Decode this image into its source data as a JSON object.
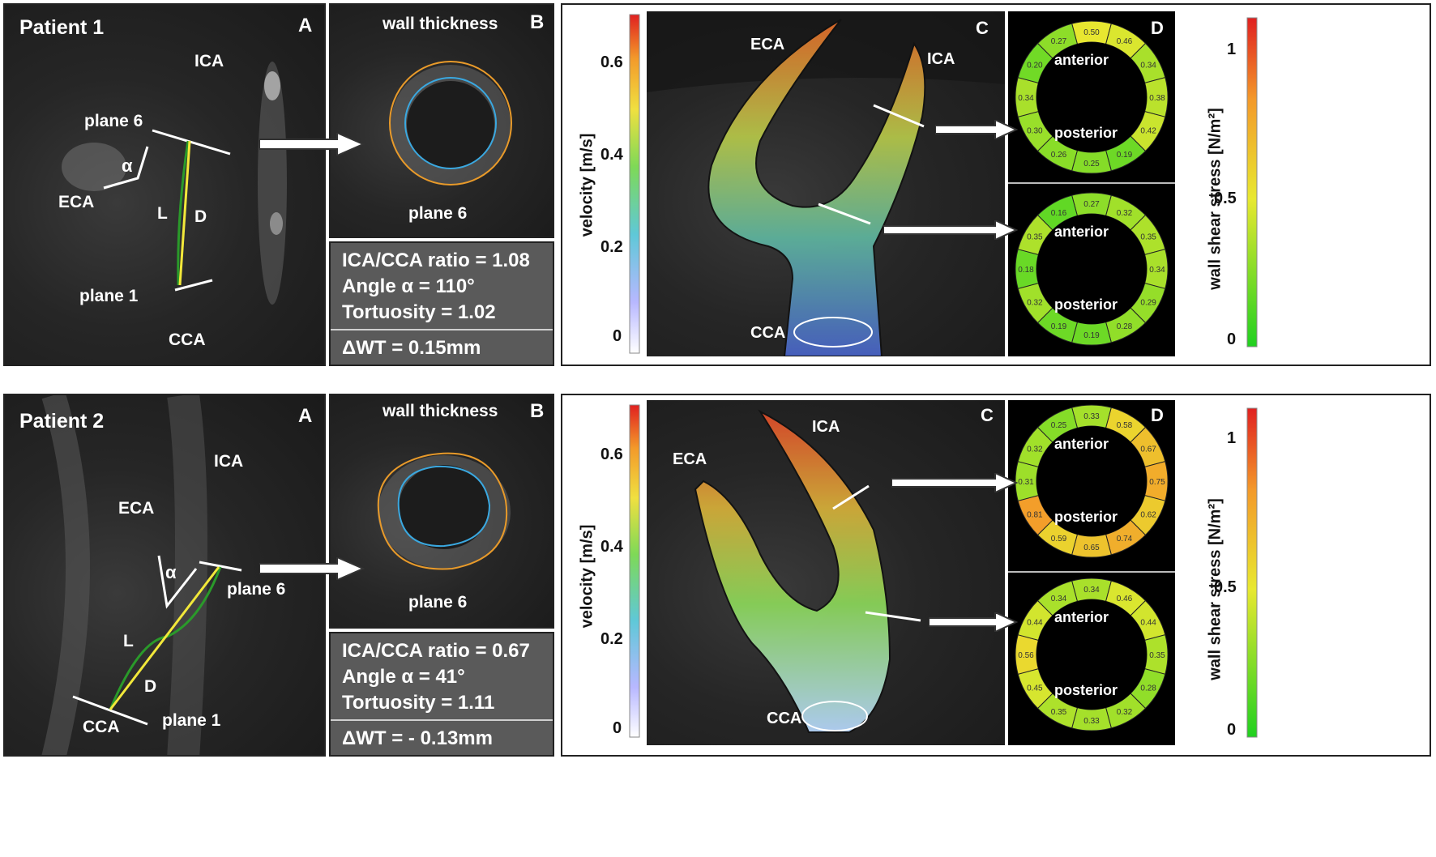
{
  "common": {
    "label_A": "A",
    "label_B": "B",
    "label_C": "C",
    "label_D": "D",
    "ICA": "ICA",
    "ECA": "ECA",
    "CCA": "CCA",
    "plane1": "plane 1",
    "plane6": "plane 6",
    "alpha": "α",
    "L": "L",
    "D": "D",
    "wall_thickness": "wall thickness",
    "anterior": "anterior",
    "posterior": "posterior",
    "velocity_axis": "velocity [m/s]",
    "velocity_ticks": [
      "0.6",
      "0.4",
      "0.2",
      "0"
    ],
    "wss_axis": "wall shear stress [N/m²]",
    "wss_ticks": [
      "1",
      "0.5",
      "0"
    ]
  },
  "patient1": {
    "title": "Patient 1",
    "ratio": "ICA/CCA ratio = 1.08",
    "angle": "Angle α = 110°",
    "tortuosity": "Tortuosity = 1.02",
    "dwt": "ΔWT =  0.15mm",
    "ring_top": [
      "0.50",
      "0.46",
      "0.34",
      "0.38",
      "0.42",
      "0.19",
      "0.25",
      "0.26",
      "0.30",
      "0.34",
      "0.20",
      "0.27"
    ],
    "ring_bottom": [
      "0.27",
      "0.32",
      "0.35",
      "0.34",
      "0.29",
      "0.28",
      "0.19",
      "0.19",
      "0.32",
      "0.18",
      "0.35",
      "0.16"
    ]
  },
  "patient2": {
    "title": "Patient 2",
    "ratio": "ICA/CCA ratio = 0.67",
    "angle": "Angle α = 41°",
    "tortuosity": "Tortuosity = 1.11",
    "dwt": "ΔWT =  - 0.13mm",
    "ring_top": [
      "0.33",
      "0.58",
      "0.67",
      "0.75",
      "0.62",
      "0.74",
      "0.65",
      "0.59",
      "0.81",
      "0.31",
      "0.32",
      "0.25"
    ],
    "ring_bottom": [
      "0.34",
      "0.46",
      "0.44",
      "0.35",
      "0.28",
      "0.32",
      "0.33",
      "0.35",
      "0.45",
      "0.56",
      "0.44",
      "0.34"
    ]
  }
}
